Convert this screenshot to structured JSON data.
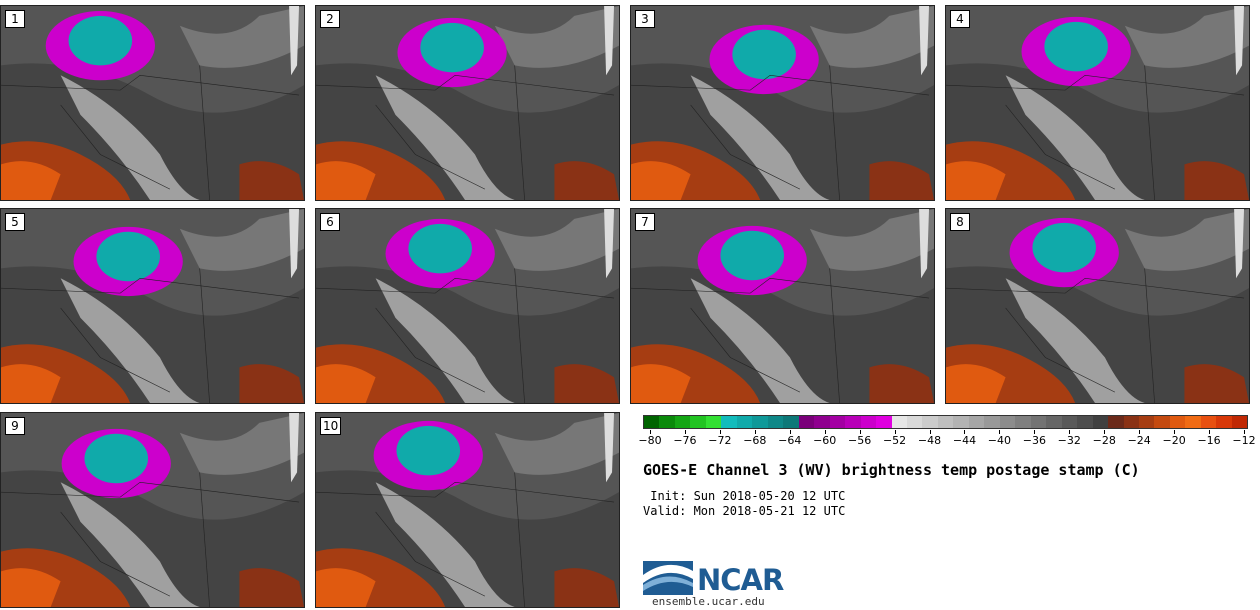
{
  "panels": [
    {
      "label": "1"
    },
    {
      "label": "2"
    },
    {
      "label": "3"
    },
    {
      "label": "4"
    },
    {
      "label": "5"
    },
    {
      "label": "6"
    },
    {
      "label": "7"
    },
    {
      "label": "8"
    },
    {
      "label": "9"
    },
    {
      "label": "10"
    }
  ],
  "colorbar": {
    "colors": [
      "#006400",
      "#0a8a0a",
      "#14a614",
      "#22c422",
      "#33e033",
      "#12bcbc",
      "#10aaaa",
      "#0f9999",
      "#0e8888",
      "#0d7878",
      "#7a007a",
      "#8f008f",
      "#a300a3",
      "#b800b8",
      "#cc00cc",
      "#e000e0",
      "#e6e6e6",
      "#d9d9d9",
      "#cccccc",
      "#bfbfbf",
      "#b3b3b3",
      "#a6a6a6",
      "#999999",
      "#8c8c8c",
      "#7f7f7f",
      "#737373",
      "#666666",
      "#595959",
      "#4d4d4d",
      "#404040",
      "#6b2a1a",
      "#8a3215",
      "#a63d12",
      "#c44a10",
      "#e05a10",
      "#f06b14",
      "#e85010",
      "#d83808",
      "#c02804"
    ],
    "ticks": [
      "−80",
      "−76",
      "−72",
      "−68",
      "−64",
      "−60",
      "−56",
      "−52",
      "−48",
      "−44",
      "−40",
      "−36",
      "−32",
      "−28",
      "−24",
      "−20",
      "−16",
      "−12"
    ]
  },
  "title": "GOES-E Channel 3 (WV) brightness temp postage stamp (C)",
  "init_line": " Init: Sun 2018-05-20 12 UTC",
  "valid_line": "Valid: Mon 2018-05-21 12 UTC",
  "logo_text": "NCAR",
  "site": "ensemble.ucar.edu"
}
